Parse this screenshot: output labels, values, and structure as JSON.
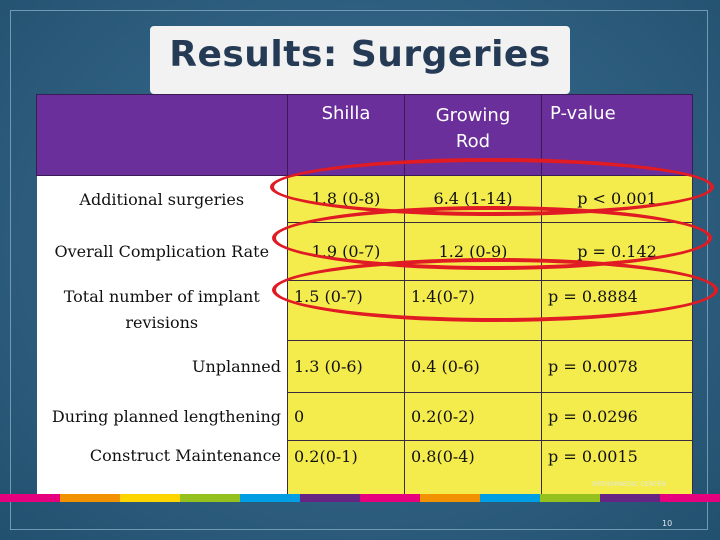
{
  "slide": {
    "title": "Results: Surgeries",
    "logo_text": "ORTHOPAEDIC CENTER",
    "page_number": "10"
  },
  "table": {
    "headers": [
      "",
      "Shilla",
      "Growing Rod",
      "P-value"
    ],
    "rows": [
      {
        "label": "Additional surgeries",
        "shilla": "1.8 (0-8)",
        "growing_rod": "6.4 (1-14)",
        "p_value": "p < 0.001"
      },
      {
        "label": "Overall Complication Rate",
        "shilla": "1.9 (0-7)",
        "growing_rod": "1.2 (0-9)",
        "p_value": "p = 0.142"
      },
      {
        "label": "Total number of implant revisions",
        "shilla": "1.5 (0-7)",
        "growing_rod": "1.4(0-7)",
        "p_value": "p = 0.8884"
      },
      {
        "label": "Unplanned",
        "shilla": "1.3 (0-6)",
        "growing_rod": "0.4 (0-6)",
        "p_value": "p = 0.0078"
      },
      {
        "label": "During planned lengthening",
        "shilla": "0",
        "growing_rod": "0.2(0-2)",
        "p_value": "p = 0.0296"
      },
      {
        "label": "Construct Maintenance",
        "shilla": "0.2(0-1)",
        "growing_rod": "0.8(0-4)",
        "p_value": "p = 0.0015"
      }
    ]
  },
  "colors": {
    "header_purple": "#6a2f9a",
    "cell_yellow": "#f4ec4c",
    "highlight_red": "#e01b24",
    "background_blue": "#2f5f80"
  }
}
